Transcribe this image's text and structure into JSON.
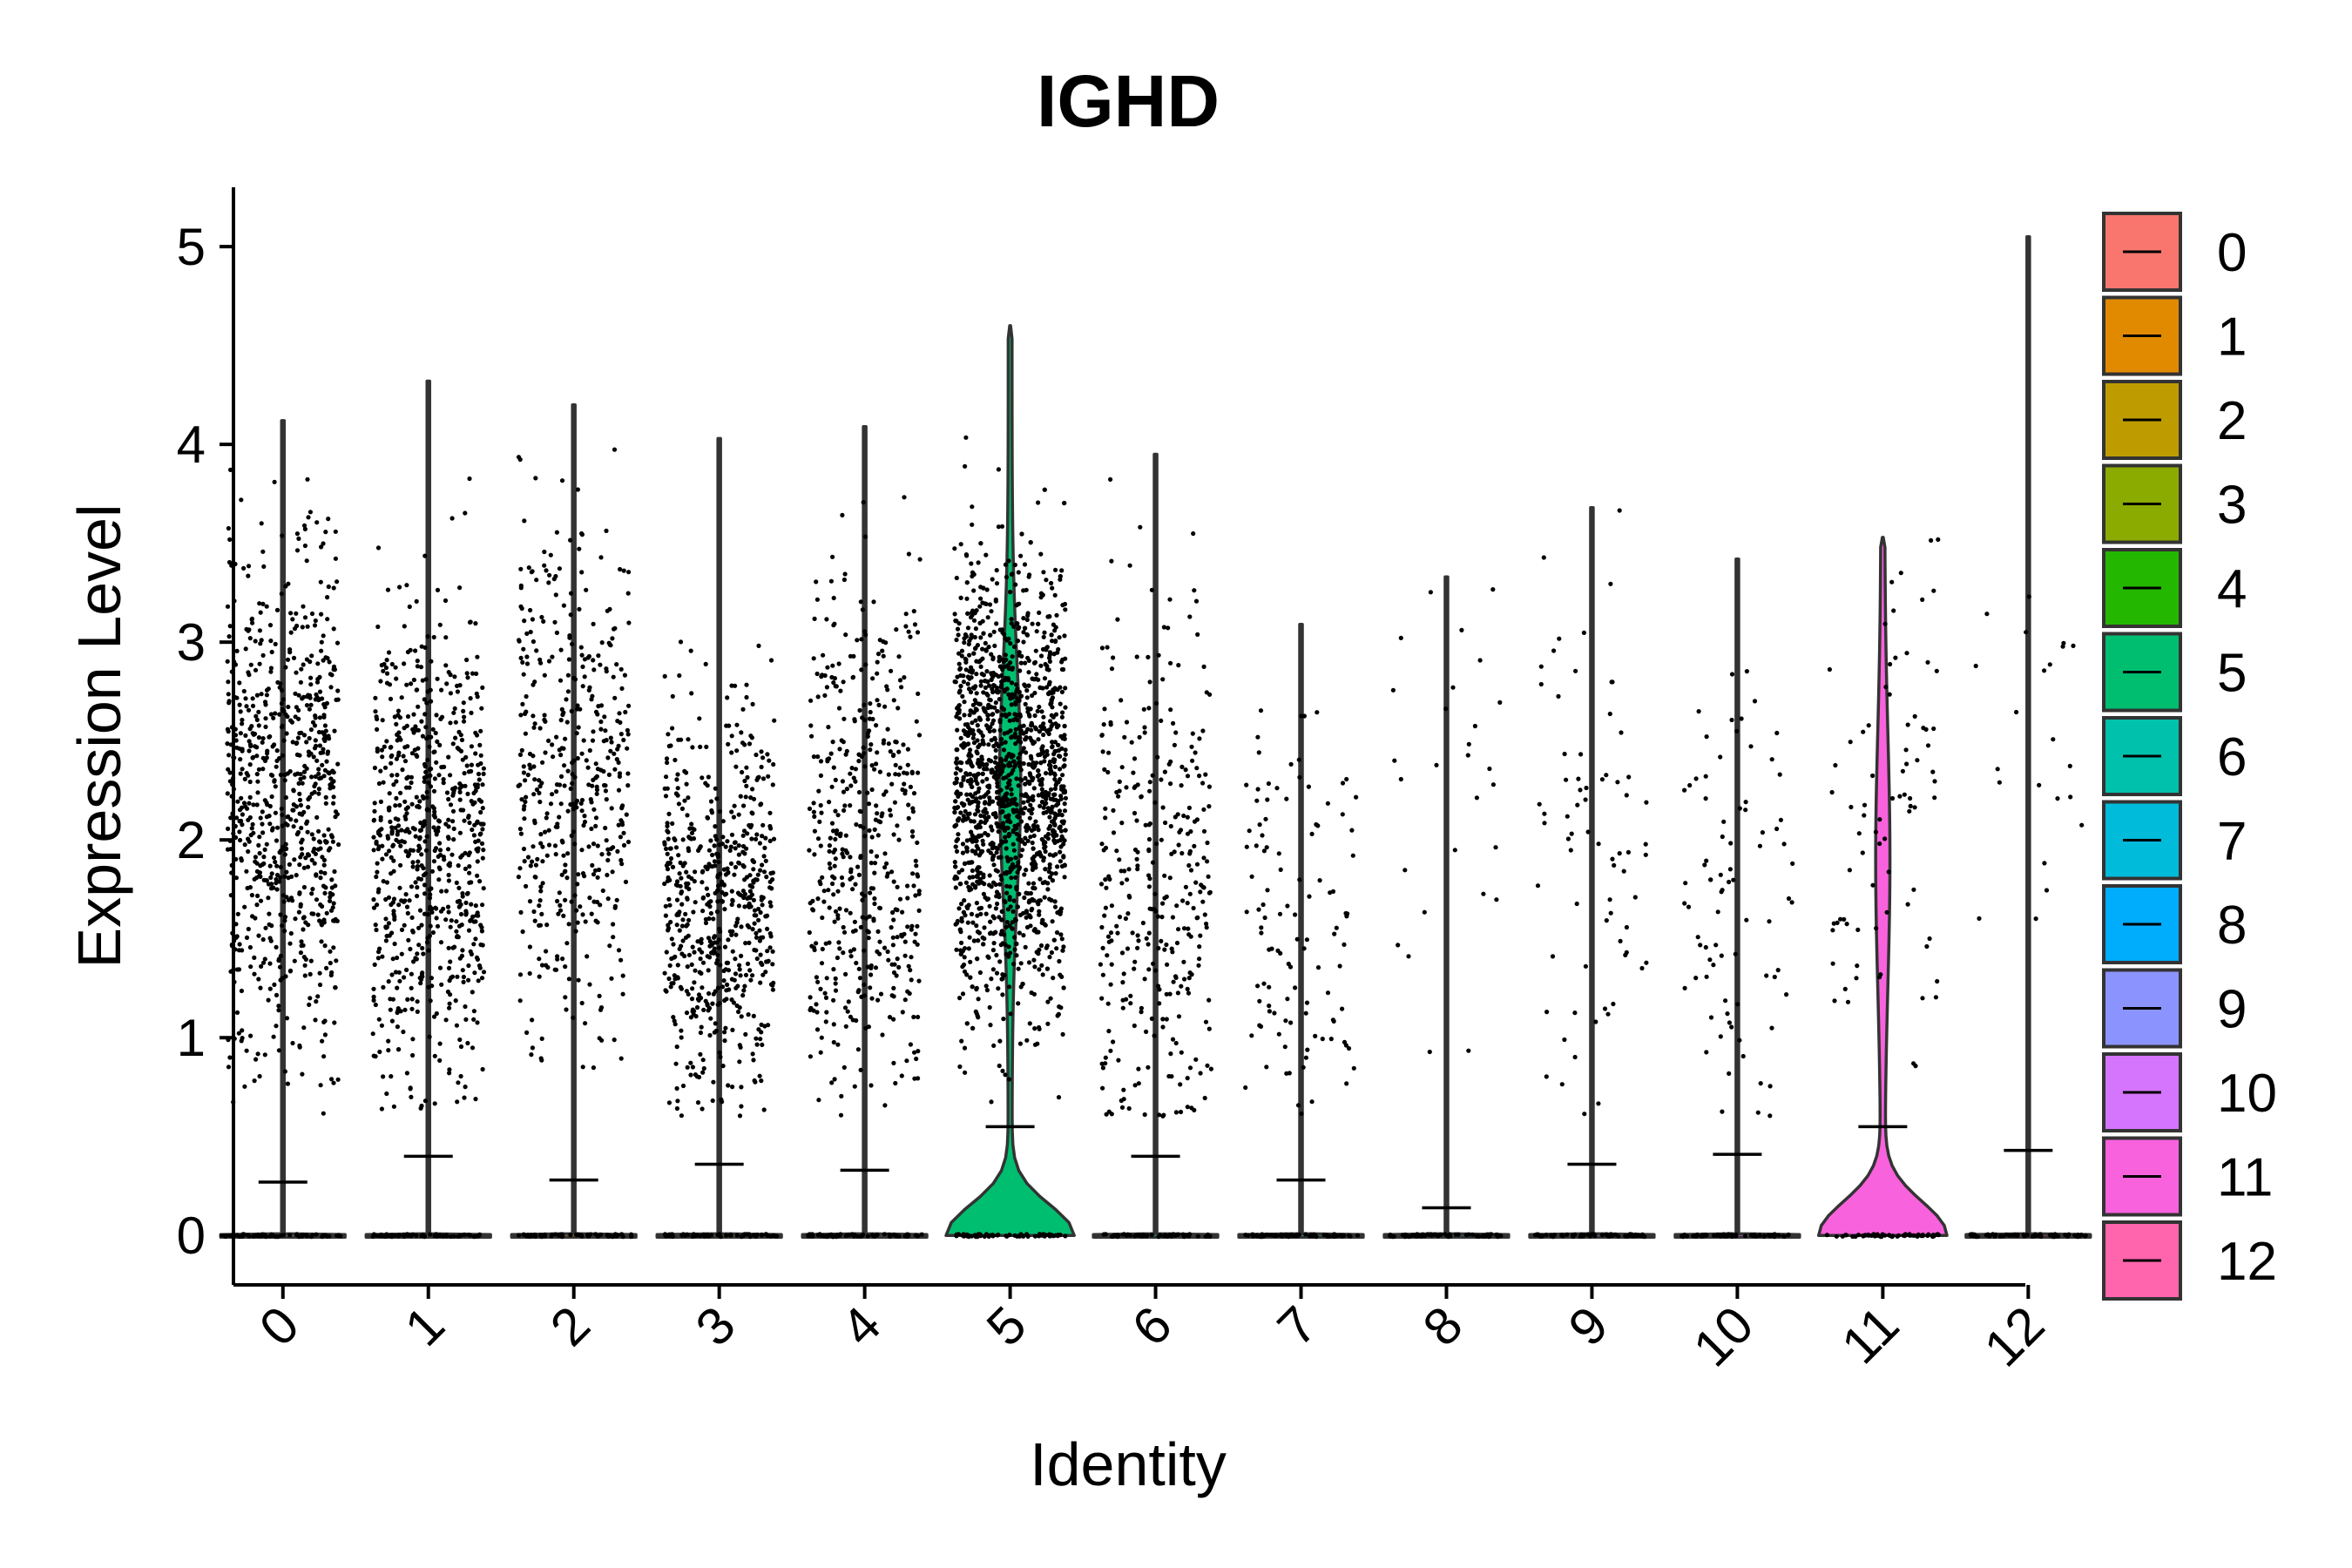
{
  "chart_data": {
    "type": "violin",
    "title": "IGHD",
    "xlabel": "Identity",
    "ylabel": "Expression Level",
    "ylim": [
      -0.25,
      5.3
    ],
    "yticks": [
      0,
      1,
      2,
      3,
      4,
      5
    ],
    "grid": false,
    "legend_position": "right",
    "categories": [
      "0",
      "1",
      "2",
      "3",
      "4",
      "5",
      "6",
      "7",
      "8",
      "9",
      "10",
      "11",
      "12"
    ],
    "colors": [
      "#F8766D",
      "#E18A00",
      "#BE9C00",
      "#8CAB00",
      "#24B700",
      "#00BE70",
      "#00C1AB",
      "#00BBDA",
      "#00ACFC",
      "#8B93FF",
      "#D575FE",
      "#F962DD",
      "#FF65AC"
    ],
    "max_expression": [
      4.12,
      4.32,
      4.2,
      4.03,
      4.09,
      4.6,
      3.95,
      3.09,
      3.33,
      3.68,
      3.42,
      3.53,
      5.05
    ],
    "median_marker": [
      0.27,
      0.4,
      0.28,
      0.36,
      0.33,
      0.55,
      0.4,
      0.28,
      0.14,
      0.36,
      0.41,
      0.55,
      0.43
    ],
    "nonzero_cells_approx": [
      760,
      720,
      450,
      620,
      480,
      1700,
      330,
      110,
      28,
      70,
      80,
      80,
      22
    ],
    "points_center": [
      2.2,
      2.0,
      2.3,
      1.7,
      2.0,
      2.3,
      1.8,
      1.6,
      2.4,
      2.0,
      1.8,
      2.1,
      2.5
    ],
    "points_sd": [
      0.65,
      0.6,
      0.65,
      0.5,
      0.65,
      0.55,
      0.7,
      0.55,
      0.7,
      0.7,
      0.6,
      0.65,
      0.6
    ],
    "y_tick_labels": [
      "0",
      "1",
      "2",
      "3",
      "4",
      "5"
    ]
  }
}
